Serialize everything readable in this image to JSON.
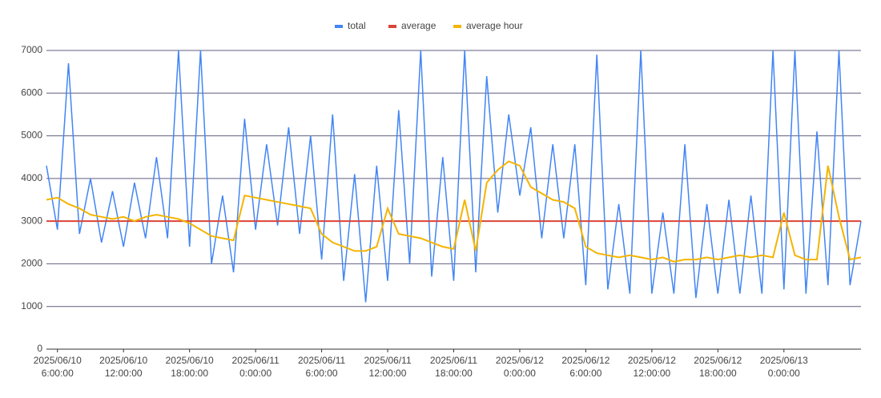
{
  "chart_data": {
    "type": "line",
    "x": [
      "2025/06/10 5:00:00",
      "2025/06/10 6:00:00",
      "2025/06/10 7:00:00",
      "2025/06/10 8:00:00",
      "2025/06/10 9:00:00",
      "2025/06/10 10:00:00",
      "2025/06/10 11:00:00",
      "2025/06/10 12:00:00",
      "2025/06/10 13:00:00",
      "2025/06/10 14:00:00",
      "2025/06/10 15:00:00",
      "2025/06/10 16:00:00",
      "2025/06/10 17:00:00",
      "2025/06/10 18:00:00",
      "2025/06/10 19:00:00",
      "2025/06/10 20:00:00",
      "2025/06/10 21:00:00",
      "2025/06/10 22:00:00",
      "2025/06/10 23:00:00",
      "2025/06/11 0:00:00",
      "2025/06/11 1:00:00",
      "2025/06/11 2:00:00",
      "2025/06/11 3:00:00",
      "2025/06/11 4:00:00",
      "2025/06/11 5:00:00",
      "2025/06/11 6:00:00",
      "2025/06/11 7:00:00",
      "2025/06/11 8:00:00",
      "2025/06/11 9:00:00",
      "2025/06/11 10:00:00",
      "2025/06/11 11:00:00",
      "2025/06/11 12:00:00",
      "2025/06/11 13:00:00",
      "2025/06/11 14:00:00",
      "2025/06/11 15:00:00",
      "2025/06/11 16:00:00",
      "2025/06/11 17:00:00",
      "2025/06/11 18:00:00",
      "2025/06/11 19:00:00",
      "2025/06/11 20:00:00",
      "2025/06/11 21:00:00",
      "2025/06/11 22:00:00",
      "2025/06/11 23:00:00",
      "2025/06/12 0:00:00",
      "2025/06/12 1:00:00",
      "2025/06/12 2:00:00",
      "2025/06/12 3:00:00",
      "2025/06/12 4:00:00",
      "2025/06/12 5:00:00",
      "2025/06/12 6:00:00",
      "2025/06/12 7:00:00",
      "2025/06/12 8:00:00",
      "2025/06/12 9:00:00",
      "2025/06/12 10:00:00",
      "2025/06/12 11:00:00",
      "2025/06/12 12:00:00",
      "2025/06/12 13:00:00",
      "2025/06/12 14:00:00",
      "2025/06/12 15:00:00",
      "2025/06/12 16:00:00",
      "2025/06/12 17:00:00",
      "2025/06/12 18:00:00",
      "2025/06/12 19:00:00",
      "2025/06/12 20:00:00",
      "2025/06/12 21:00:00",
      "2025/06/12 22:00:00",
      "2025/06/12 23:00:00",
      "2025/06/13 0:00:00",
      "2025/06/13 1:00:00",
      "2025/06/13 2:00:00",
      "2025/06/13 3:00:00",
      "2025/06/13 4:00:00",
      "2025/06/13 5:00:00",
      "2025/06/13 6:00:00",
      "2025/06/13 7:00:00"
    ],
    "series": [
      {
        "name": "total",
        "color": "#4285f4",
        "values": [
          4300,
          2800,
          6700,
          2700,
          4000,
          2500,
          3700,
          2400,
          3900,
          2600,
          4500,
          2600,
          7000,
          2400,
          7000,
          2000,
          3600,
          1800,
          5400,
          2800,
          4800,
          2900,
          5200,
          2700,
          5000,
          2100,
          5500,
          1600,
          4100,
          1100,
          4300,
          1600,
          5600,
          2000,
          7000,
          1700,
          4500,
          1600,
          7000,
          1800,
          6400,
          3200,
          5500,
          3600,
          5200,
          2600,
          4800,
          2600,
          4800,
          1500,
          6900,
          1400,
          3400,
          1300,
          7000,
          1300,
          3200,
          1300,
          4800,
          1200,
          3400,
          1300,
          3500,
          1300,
          3600,
          1300,
          7000,
          1400,
          7000,
          1300,
          5100,
          1500,
          7000,
          1500,
          3000
        ]
      },
      {
        "name": "average",
        "color": "#db4437",
        "values": [
          3000,
          3000,
          3000,
          3000,
          3000,
          3000,
          3000,
          3000,
          3000,
          3000,
          3000,
          3000,
          3000,
          3000,
          3000,
          3000,
          3000,
          3000,
          3000,
          3000,
          3000,
          3000,
          3000,
          3000,
          3000,
          3000,
          3000,
          3000,
          3000,
          3000,
          3000,
          3000,
          3000,
          3000,
          3000,
          3000,
          3000,
          3000,
          3000,
          3000,
          3000,
          3000,
          3000,
          3000,
          3000,
          3000,
          3000,
          3000,
          3000,
          3000,
          3000,
          3000,
          3000,
          3000,
          3000,
          3000,
          3000,
          3000,
          3000,
          3000,
          3000,
          3000,
          3000,
          3000,
          3000,
          3000,
          3000,
          3000,
          3000,
          3000,
          3000,
          3000,
          3000,
          3000,
          3000
        ]
      },
      {
        "name": "average hour",
        "color": "#f4b400",
        "values": [
          3500,
          3550,
          3400,
          3300,
          3150,
          3100,
          3050,
          3100,
          3000,
          3100,
          3150,
          3100,
          3050,
          2950,
          2800,
          2650,
          2600,
          2550,
          3600,
          3550,
          3500,
          3450,
          3400,
          3350,
          3300,
          2700,
          2500,
          2400,
          2300,
          2300,
          2400,
          3300,
          2700,
          2650,
          2600,
          2500,
          2400,
          2350,
          3500,
          2300,
          3900,
          4200,
          4400,
          4300,
          3800,
          3650,
          3500,
          3450,
          3300,
          2400,
          2250,
          2200,
          2150,
          2200,
          2150,
          2100,
          2150,
          2050,
          2100,
          2100,
          2150,
          2100,
          2150,
          2200,
          2150,
          2200,
          2150,
          3200,
          2200,
          2100,
          2100,
          4300,
          3100,
          2100,
          2150
        ]
      }
    ],
    "xlim": [
      "2025/06/10 5:00:00",
      "2025/06/13 7:00:00"
    ],
    "xticks": [
      {
        "value": "2025/06/10 6:00:00",
        "label": [
          "2025/06/10",
          "6:00:00"
        ]
      },
      {
        "value": "2025/06/10 12:00:00",
        "label": [
          "2025/06/10",
          "12:00:00"
        ]
      },
      {
        "value": "2025/06/10 18:00:00",
        "label": [
          "2025/06/10",
          "18:00:00"
        ]
      },
      {
        "value": "2025/06/11 0:00:00",
        "label": [
          "2025/06/11",
          "0:00:00"
        ]
      },
      {
        "value": "2025/06/11 6:00:00",
        "label": [
          "2025/06/11",
          "6:00:00"
        ]
      },
      {
        "value": "2025/06/11 12:00:00",
        "label": [
          "2025/06/11",
          "12:00:00"
        ]
      },
      {
        "value": "2025/06/11 18:00:00",
        "label": [
          "2025/06/11",
          "18:00:00"
        ]
      },
      {
        "value": "2025/06/12 0:00:00",
        "label": [
          "2025/06/12",
          "0:00:00"
        ]
      },
      {
        "value": "2025/06/12 6:00:00",
        "label": [
          "2025/06/12",
          "6:00:00"
        ]
      },
      {
        "value": "2025/06/12 12:00:00",
        "label": [
          "2025/06/12",
          "12:00:00"
        ]
      },
      {
        "value": "2025/06/12 18:00:00",
        "label": [
          "2025/06/12",
          "18:00:00"
        ]
      },
      {
        "value": "2025/06/13 0:00:00",
        "label": [
          "2025/06/13",
          "0:00:00"
        ]
      }
    ],
    "ylim": [
      0,
      7000
    ],
    "yticks": [
      0,
      1000,
      2000,
      3000,
      4000,
      5000,
      6000,
      7000
    ],
    "grid": true,
    "legend": "top"
  }
}
